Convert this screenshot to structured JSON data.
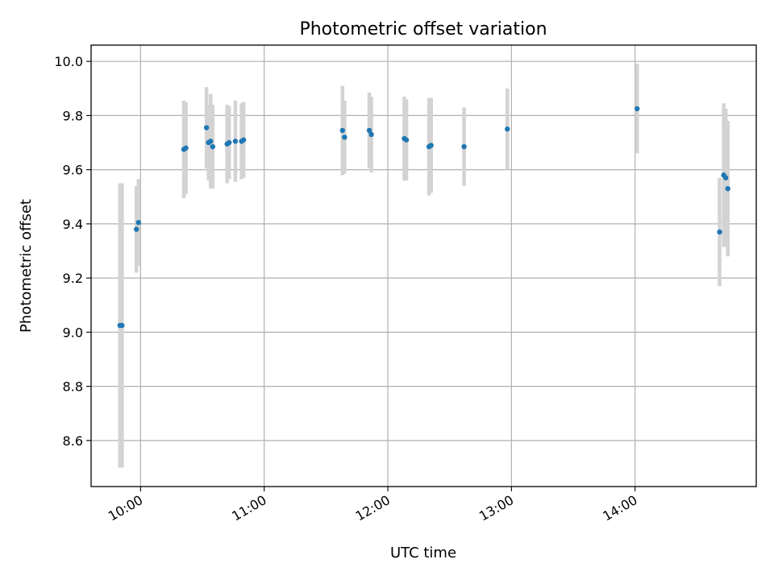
{
  "chart_data": {
    "type": "scatter",
    "title": "Photometric offset variation",
    "xlabel": "UTC time",
    "ylabel": "Photometric offset",
    "x_tick_labels": [
      "10:00",
      "11:00",
      "12:00",
      "13:00",
      "14:00"
    ],
    "x_tick_hours": [
      10,
      11,
      12,
      13,
      14
    ],
    "y_ticks": [
      8.6,
      8.8,
      9.0,
      9.2,
      9.4,
      9.6,
      9.8,
      10.0
    ],
    "xlim_hours": [
      9.6,
      14.98
    ],
    "ylim": [
      8.43,
      10.06
    ],
    "grid": true,
    "point_color": "#1f77b4",
    "errorbar_color": "#d3d3d3",
    "points": [
      {
        "t": "09:50",
        "y": 9.025,
        "err": 0.525
      },
      {
        "t": "09:51",
        "y": 9.025,
        "err": 0.525
      },
      {
        "t": "09:58",
        "y": 9.38,
        "err": 0.16
      },
      {
        "t": "09:59",
        "y": 9.405,
        "err": 0.16
      },
      {
        "t": "10:21",
        "y": 9.675,
        "err": 0.18
      },
      {
        "t": "10:22",
        "y": 9.68,
        "err": 0.17
      },
      {
        "t": "10:32",
        "y": 9.755,
        "err": 0.15
      },
      {
        "t": "10:33",
        "y": 9.7,
        "err": 0.14
      },
      {
        "t": "10:34",
        "y": 9.705,
        "err": 0.175
      },
      {
        "t": "10:35",
        "y": 9.685,
        "err": 0.155
      },
      {
        "t": "10:42",
        "y": 9.695,
        "err": 0.145
      },
      {
        "t": "10:43",
        "y": 9.7,
        "err": 0.135
      },
      {
        "t": "10:46",
        "y": 9.705,
        "err": 0.15
      },
      {
        "t": "10:49",
        "y": 9.705,
        "err": 0.14
      },
      {
        "t": "10:50",
        "y": 9.71,
        "err": 0.14
      },
      {
        "t": "11:38",
        "y": 9.745,
        "err": 0.165
      },
      {
        "t": "11:39",
        "y": 9.72,
        "err": 0.135
      },
      {
        "t": "11:51",
        "y": 9.745,
        "err": 0.14
      },
      {
        "t": "11:52",
        "y": 9.73,
        "err": 0.14
      },
      {
        "t": "12:08",
        "y": 9.715,
        "err": 0.155
      },
      {
        "t": "12:09",
        "y": 9.71,
        "err": 0.15
      },
      {
        "t": "12:20",
        "y": 9.685,
        "err": 0.18
      },
      {
        "t": "12:21",
        "y": 9.69,
        "err": 0.175
      },
      {
        "t": "12:37",
        "y": 9.685,
        "err": 0.145
      },
      {
        "t": "12:58",
        "y": 9.75,
        "err": 0.15
      },
      {
        "t": "14:01",
        "y": 9.825,
        "err": 0.165
      },
      {
        "t": "14:41",
        "y": 9.37,
        "err": 0.2
      },
      {
        "t": "14:43",
        "y": 9.58,
        "err": 0.265
      },
      {
        "t": "14:44",
        "y": 9.57,
        "err": 0.255
      },
      {
        "t": "14:45",
        "y": 9.53,
        "err": 0.25
      }
    ]
  }
}
